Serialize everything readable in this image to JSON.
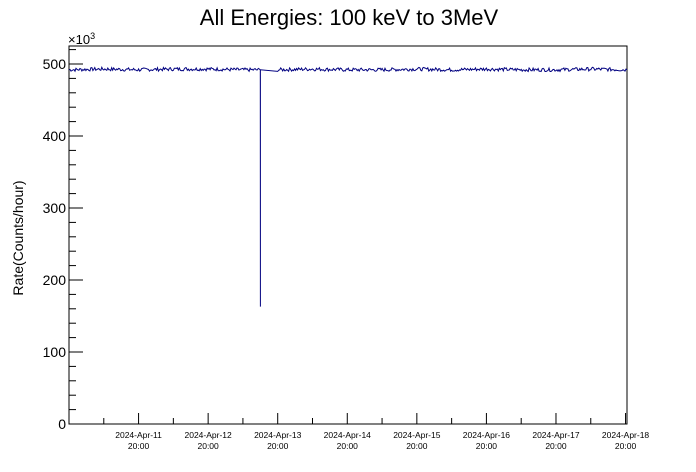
{
  "chart_data": {
    "type": "line",
    "title": "All Energies:  100 keV to 3MeV",
    "ylabel": "Rate(Counts/hour)",
    "xlabel": "",
    "y_multiplier_label": "×10",
    "y_multiplier_exponent": "3",
    "ylim": [
      0,
      525
    ],
    "xlim": [
      "2024-04-10T20:00",
      "2024-04-18T20:30"
    ],
    "y_ticks": [
      0,
      100,
      200,
      300,
      400,
      500
    ],
    "y_tick_labels": [
      "0",
      "100",
      "200",
      "300",
      "400",
      "500"
    ],
    "x_ticks": [
      "2024-04-11T20:00",
      "2024-04-12T20:00",
      "2024-04-13T20:00",
      "2024-04-14T20:00",
      "2024-04-15T20:00",
      "2024-04-16T20:00",
      "2024-04-17T20:00",
      "2024-04-18T20:00"
    ],
    "x_tick_labels": [
      {
        "date": "2024-Apr-11",
        "time": "20:00"
      },
      {
        "date": "2024-Apr-12",
        "time": "20:00"
      },
      {
        "date": "2024-Apr-13",
        "time": "20:00"
      },
      {
        "date": "2024-Apr-14",
        "time": "20:00"
      },
      {
        "date": "2024-Apr-15",
        "time": "20:00"
      },
      {
        "date": "2024-Apr-16",
        "time": "20:00"
      },
      {
        "date": "2024-Apr-17",
        "time": "20:00"
      },
      {
        "date": "2024-Apr-18",
        "time": "20:00"
      }
    ],
    "grid": false,
    "series": [
      {
        "color": "#000080",
        "x": [
          "2024-04-10T20:00",
          "2024-04-11T08:00",
          "2024-04-11T20:00",
          "2024-04-12T08:00",
          "2024-04-12T20:00",
          "2024-04-13T08:00",
          "2024-04-13T14:00",
          "2024-04-13T14:01",
          "2024-04-13T14:02",
          "2024-04-13T20:00",
          "2024-04-14T08:00",
          "2024-04-14T20:00",
          "2024-04-15T08:00",
          "2024-04-15T20:00",
          "2024-04-16T08:00",
          "2024-04-16T20:00",
          "2024-04-17T08:00",
          "2024-04-17T20:00",
          "2024-04-18T08:00",
          "2024-04-18T20:30"
        ],
        "y": [
          492,
          493,
          492,
          493,
          493,
          492,
          492,
          163,
          492,
          492,
          493,
          492,
          492,
          493,
          492,
          493,
          492,
          492,
          493,
          492
        ]
      }
    ]
  }
}
